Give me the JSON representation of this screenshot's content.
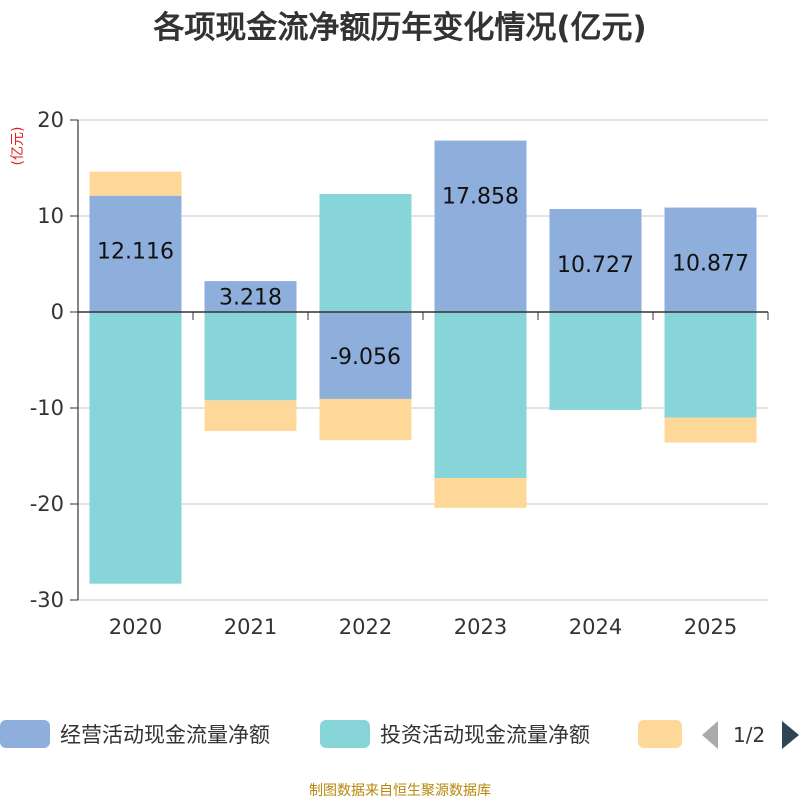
{
  "chart_data": {
    "type": "bar",
    "stacked": true,
    "title": "各项现金流净额历年变化情况(亿元)",
    "ylabel": "(亿元)",
    "ylim": [
      -30,
      20
    ],
    "yticks": [
      20,
      10,
      0,
      -10,
      -20,
      -30
    ],
    "categories": [
      "2020",
      "2021",
      "2022",
      "2023",
      "2024",
      "2025"
    ],
    "series": [
      {
        "name": "经营活动现金流量净额",
        "color": "#8eaedb",
        "values": [
          12.116,
          3.218,
          -9.056,
          17.858,
          10.727,
          10.877
        ]
      },
      {
        "name": "投资活动现金流量净额",
        "color": "#87d5d8",
        "values": [
          -28.3,
          -9.2,
          12.3,
          -17.3,
          -10.2,
          -11.0
        ]
      },
      {
        "name": "",
        "color": "#fdd898",
        "values": [
          2.5,
          -3.2,
          -4.3,
          -3.1,
          0,
          -2.6
        ]
      }
    ],
    "data_labels": [
      "12.116",
      "3.218",
      "-9.056",
      "17.858",
      "10.727",
      "10.877"
    ],
    "legend_position": "bottom"
  },
  "legend": {
    "items": [
      "经营活动现金流量净额",
      "投资活动现金流量净额",
      ""
    ],
    "pager": "1/2"
  },
  "source": "制图数据来自恒生聚源数据库"
}
